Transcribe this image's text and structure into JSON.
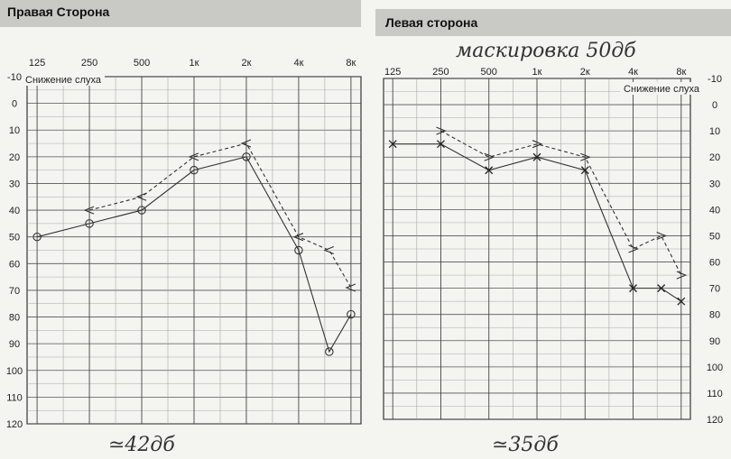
{
  "chart_data": [
    {
      "type": "line",
      "title": "Правая Сторона",
      "ylabel": "Снижение слуха",
      "x": [
        "125",
        "250",
        "500",
        "1к",
        "2к",
        "4к",
        "8к"
      ],
      "y_ticks": [
        "-10",
        "0",
        "10",
        "20",
        "30",
        "40",
        "50",
        "60",
        "70",
        "80",
        "90",
        "100",
        "110",
        "120"
      ],
      "ylim": [
        -10,
        120
      ],
      "y_inverted": true,
      "grid": true,
      "handwritten_note": "≃42дб",
      "series": [
        {
          "style": "solid",
          "marker": "circle",
          "points": [
            [
              125,
              50
            ],
            [
              250,
              45
            ],
            [
              500,
              40
            ],
            [
              1000,
              25
            ],
            [
              2000,
              20
            ],
            [
              4000,
              55
            ],
            [
              6000,
              93
            ],
            [
              8000,
              79
            ]
          ]
        },
        {
          "style": "dashed",
          "marker": "arrow-left",
          "points": [
            [
              250,
              40
            ],
            [
              500,
              35
            ],
            [
              1000,
              20
            ],
            [
              2000,
              15
            ],
            [
              4000,
              50
            ],
            [
              6000,
              55
            ],
            [
              8000,
              69
            ]
          ]
        }
      ]
    },
    {
      "type": "line",
      "title": "Левая сторона",
      "ylabel": "Снижение слуха",
      "x": [
        "125",
        "250",
        "500",
        "1к",
        "2к",
        "4к",
        "8к"
      ],
      "y_ticks": [
        "-10",
        "0",
        "10",
        "20",
        "30",
        "40",
        "50",
        "60",
        "70",
        "80",
        "90",
        "100",
        "110",
        "120"
      ],
      "ylim": [
        -10,
        120
      ],
      "y_inverted": true,
      "grid": true,
      "handwritten_note": "≃35дб",
      "handwritten_header": "маскировка 50дб",
      "series": [
        {
          "style": "solid",
          "marker": "x",
          "points": [
            [
              125,
              15
            ],
            [
              250,
              15
            ],
            [
              500,
              25
            ],
            [
              1000,
              20
            ],
            [
              2000,
              25
            ],
            [
              4000,
              70
            ],
            [
              6000,
              70
            ],
            [
              8000,
              75
            ]
          ]
        },
        {
          "style": "dashed",
          "marker": "arrow-right",
          "points": [
            [
              250,
              10
            ],
            [
              500,
              20
            ],
            [
              1000,
              15
            ],
            [
              2000,
              20
            ],
            [
              4000,
              55
            ],
            [
              6000,
              50
            ],
            [
              8000,
              65
            ]
          ]
        }
      ]
    }
  ]
}
